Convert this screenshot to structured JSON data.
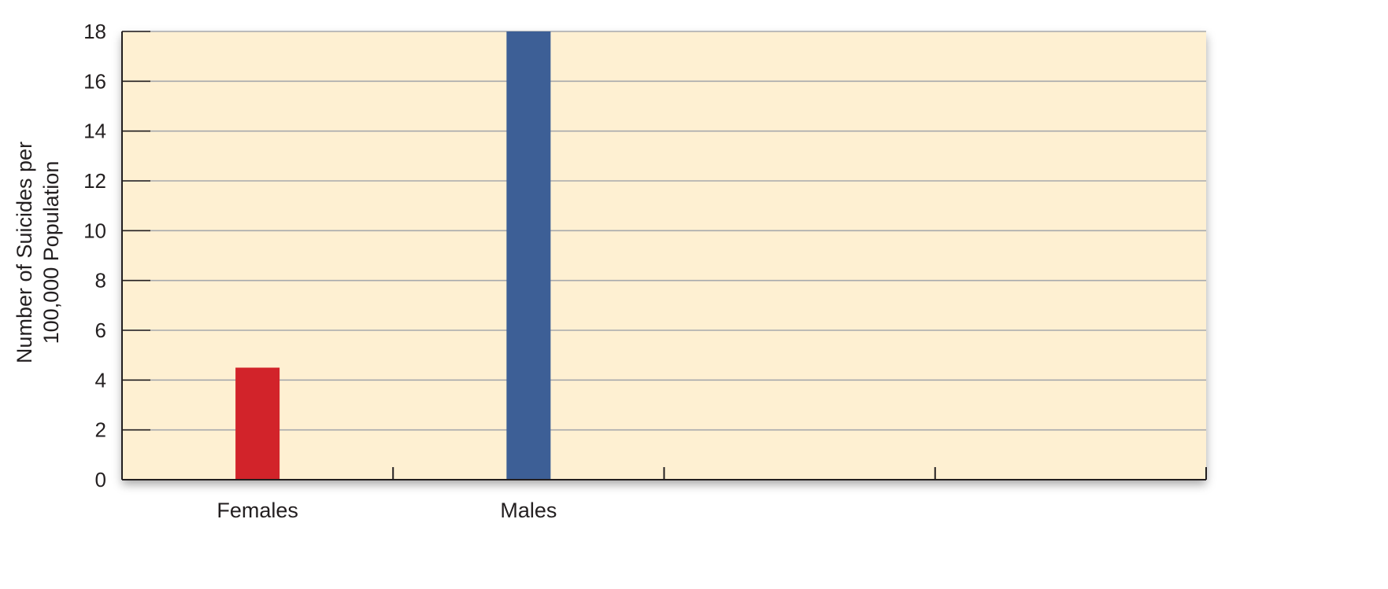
{
  "chart_data": {
    "type": "bar",
    "title": "",
    "xlabel": "",
    "ylabel_lines": [
      "Number of Suicides per",
      "100,000 Population"
    ],
    "categories": [
      "Females",
      "Males"
    ],
    "values": [
      4.5,
      18
    ],
    "bar_colors": [
      "#d2232a",
      "#3d5f96"
    ],
    "x_slots": 4,
    "ylim": [
      0,
      18
    ],
    "yticks": [
      0,
      2,
      4,
      6,
      8,
      10,
      12,
      14,
      16,
      18
    ],
    "grid": true,
    "legend": "none",
    "colors": {
      "plot_background": "#fef0d2",
      "grid": "#a7a9ac",
      "axis": "#231f20"
    }
  }
}
